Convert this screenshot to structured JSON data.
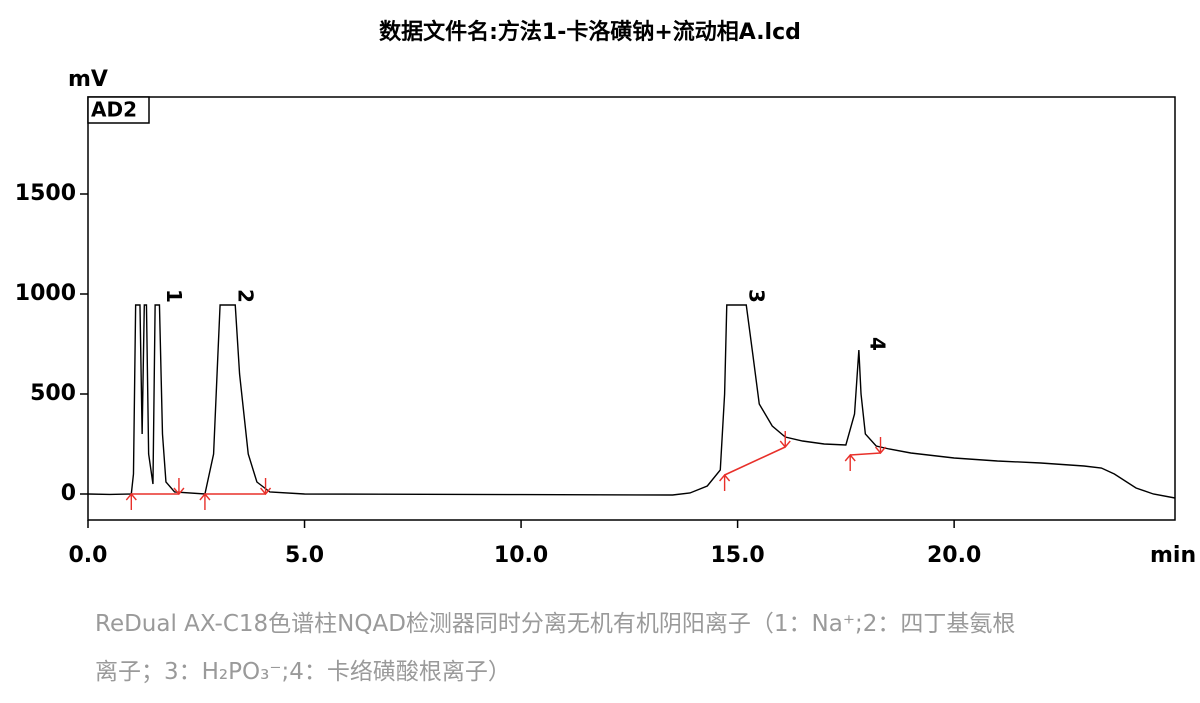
{
  "chart_data": {
    "type": "line",
    "title": "数据文件名:方法1-卡洛磺钠+流动相A.lcd",
    "y_label": "mV",
    "x_label": "min",
    "channel_label": "AD2",
    "xlim": [
      0,
      25.1
    ],
    "ylim": [
      -130,
      1985
    ],
    "xticks": [
      {
        "value": 0,
        "label": "0.0"
      },
      {
        "value": 5,
        "label": "5.0"
      },
      {
        "value": 10,
        "label": "10.0"
      },
      {
        "value": 15,
        "label": "15.0"
      },
      {
        "value": 20,
        "label": "20.0"
      }
    ],
    "yticks": [
      0,
      500,
      1000,
      1500
    ],
    "series": [
      {
        "name": "AD2",
        "color": "#000000",
        "x": [
          0,
          0.5,
          1.0,
          1.05,
          1.1,
          1.2,
          1.25,
          1.3,
          1.35,
          1.4,
          1.5,
          1.55,
          1.65,
          1.72,
          1.8,
          2.0,
          2.7,
          2.9,
          3.0,
          3.05,
          3.4,
          3.5,
          3.7,
          3.9,
          4.2,
          5,
          10,
          13.5,
          13.9,
          14.3,
          14.6,
          14.7,
          14.75,
          15.2,
          15.35,
          15.5,
          15.8,
          16.1,
          16.5,
          17.0,
          17.5,
          17.7,
          17.8,
          17.85,
          17.95,
          18.2,
          18.5,
          19,
          20,
          21,
          22,
          23,
          23.4,
          23.7,
          24.2,
          24.6,
          25.1
        ],
        "values": [
          0,
          -2,
          0,
          100,
          945,
          945,
          300,
          945,
          945,
          200,
          50,
          945,
          945,
          300,
          60,
          10,
          0,
          200,
          700,
          945,
          945,
          600,
          200,
          60,
          10,
          0,
          -3,
          -5,
          5,
          40,
          120,
          500,
          945,
          945,
          700,
          450,
          340,
          285,
          265,
          250,
          245,
          400,
          720,
          500,
          300,
          240,
          225,
          205,
          180,
          165,
          155,
          140,
          130,
          100,
          30,
          0,
          -20
        ]
      },
      {
        "name": "baseline",
        "color": "#e8302a",
        "x": [
          1.0,
          2.1,
          null,
          2.7,
          4.1,
          null,
          14.7,
          16.1,
          null,
          17.6,
          18.3
        ],
        "values": [
          0,
          0,
          null,
          0,
          0,
          null,
          95,
          235,
          null,
          195,
          205
        ]
      }
    ],
    "annotations": [
      {
        "text": "1",
        "x": 1.95,
        "y": 990
      },
      {
        "text": "2",
        "x": 3.6,
        "y": 990
      },
      {
        "text": "3",
        "x": 15.4,
        "y": 990
      },
      {
        "text": "4",
        "x": 18.2,
        "y": 750
      }
    ]
  },
  "caption_lines": [
    "ReDual AX-C18色谱柱NQAD检测器同时分离无机有机阴阳离子（1：Na⁺;2：四丁基氨根",
    "离子；3：H₂PO₃⁻;4：卡络磺酸根离子）"
  ]
}
